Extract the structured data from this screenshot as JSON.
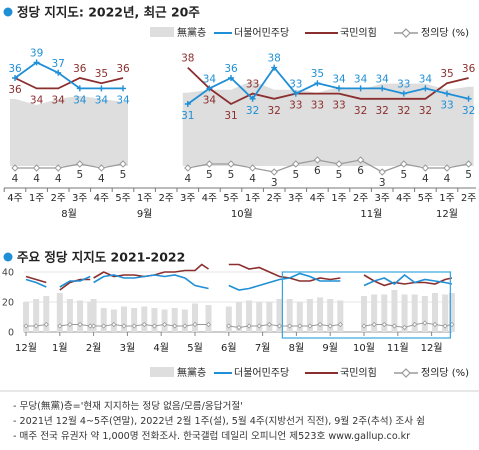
{
  "colors": {
    "minjoo": "#1f8fd6",
    "ppp": "#8b2e2e",
    "justice": "#9a9a9a",
    "nonpartisan": "#dedede",
    "bullet": "#1f8fd6",
    "highlight": "#35a6df"
  },
  "legend": {
    "nonpartisan": "無黨층",
    "minjoo": "더불어민주당",
    "ppp": "국민의힘",
    "justice": "정의당 (%)"
  },
  "legend2": {
    "nonpartisan": "無黨층",
    "minjoo": "더불어민주당",
    "ppp": "국민의힘",
    "justice": "정의당 (%)"
  },
  "notes": [
    "- 무당(無黨)층='현재 지지하는 정당 없음/모름/응답거절'",
    "- 2021년 12월 4~5주(연말), 2022년 2월 1주(설), 5월 4주(지방선거 직전), 9월 2주(추석) 조사 쉼",
    "- 매주 전국 유권자 약 1,000명 전화조사. 한국갤럽 데일리 오피니언 제523호 www.gallup.co.kr"
  ],
  "chart_data": [
    {
      "type": "line",
      "title": "정당 지지도: 2022년, 최근 20주",
      "x": [
        "4주",
        "1주",
        "2주",
        "3주",
        "4주",
        "5주",
        "1주",
        "2주",
        "3주",
        "4주",
        "5주",
        "1주",
        "2주",
        "3주",
        "4주",
        "1주",
        "2주",
        "3주",
        "4주",
        "5주",
        "1주",
        "2주"
      ],
      "month_labels": [
        {
          "label": "8월",
          "start": 1,
          "end": 4
        },
        {
          "label": "9월",
          "start": 6,
          "end": 6
        },
        {
          "label": "10월",
          "start": 9,
          "end": 12
        },
        {
          "label": "11월",
          "start": 15,
          "end": 18
        },
        {
          "label": "12월",
          "start": 20,
          "end": 20
        }
      ],
      "gaps": [
        7
      ],
      "series": [
        {
          "name": "더불어민주당",
          "key": "minjoo",
          "values": [
            36,
            39,
            37,
            34,
            34,
            34,
            null,
            null,
            31,
            34,
            36,
            32,
            38,
            33,
            35,
            34,
            34,
            34,
            33,
            34,
            33,
            32
          ]
        },
        {
          "name": "국민의힘",
          "key": "ppp",
          "values": [
            36,
            34,
            34,
            36,
            35,
            36,
            null,
            null,
            38,
            34,
            31,
            33,
            32,
            33,
            33,
            33,
            32,
            32,
            32,
            32,
            35,
            36
          ]
        },
        {
          "name": "정의당 (%)",
          "key": "justice",
          "values": [
            4,
            4,
            4,
            5,
            4,
            5,
            null,
            null,
            4,
            5,
            5,
            4,
            3,
            5,
            6,
            5,
            6,
            3,
            5,
            4,
            4,
            5
          ]
        },
        {
          "name": "無黨층",
          "key": "nonpartisan",
          "values": [
            22,
            20,
            22,
            23,
            22,
            21,
            null,
            null,
            24,
            25,
            25,
            28,
            25,
            25,
            24,
            26,
            25,
            27,
            27,
            27,
            25,
            26
          ]
        }
      ]
    },
    {
      "type": "line",
      "title": "주요 정당 지지도 2021-2022",
      "x_labels": [
        "12월",
        "1월",
        "2월",
        "3월",
        "4월",
        "5월",
        "6월",
        "7월",
        "8월",
        "9월",
        "10월",
        "11월",
        "12월"
      ],
      "yticks": [
        0,
        20,
        40
      ],
      "ylim": [
        0,
        50
      ],
      "highlight_range": [
        8,
        12.2
      ],
      "series": [
        {
          "name": "더불어민주당",
          "key": "minjoo",
          "segments": [
            [
              0.0,
              35,
              0.3,
              33,
              0.6,
              30
            ],
            [
              1.0,
              30,
              1.3,
              34,
              1.6,
              34,
              1.9,
              37
            ],
            [
              2.0,
              33,
              2.3,
              37,
              2.6,
              38,
              2.9,
              36,
              3.2,
              36,
              3.5,
              37,
              3.8,
              38,
              4.1,
              37,
              4.4,
              38,
              4.7,
              36,
              5.0,
              31,
              5.4,
              29
            ],
            [
              6.0,
              31,
              6.3,
              28,
              6.6,
              29,
              6.9,
              31,
              7.2,
              33,
              7.5,
              35,
              7.8,
              36,
              8.1,
              39,
              8.4,
              37,
              8.7,
              34,
              9.0,
              34,
              9.3,
              34
            ],
            [
              10.0,
              31,
              10.3,
              34,
              10.6,
              36,
              10.9,
              32,
              11.2,
              38,
              11.5,
              33,
              11.8,
              35,
              12.1,
              34,
              12.4,
              33,
              12.6,
              32
            ]
          ]
        },
        {
          "name": "국민의힘",
          "key": "ppp",
          "segments": [
            [
              0.0,
              37,
              0.3,
              35,
              0.6,
              33
            ],
            [
              1.0,
              28,
              1.3,
              33,
              1.6,
              35,
              1.9,
              35
            ],
            [
              2.0,
              36,
              2.3,
              40,
              2.6,
              37,
              2.9,
              38,
              3.2,
              38,
              3.5,
              37,
              3.8,
              38,
              4.1,
              40,
              4.4,
              40,
              4.7,
              41,
              5.0,
              41,
              5.2,
              45,
              5.4,
              42
            ],
            [
              6.0,
              45,
              6.3,
              45,
              6.6,
              42,
              6.9,
              43,
              7.2,
              40,
              7.5,
              37,
              7.8,
              36,
              8.1,
              34,
              8.4,
              34,
              8.7,
              36,
              9.0,
              35,
              9.3,
              36
            ],
            [
              10.0,
              38,
              10.3,
              34,
              10.6,
              31,
              10.9,
              33,
              11.2,
              32,
              11.5,
              33,
              11.8,
              33,
              12.1,
              32,
              12.4,
              35,
              12.6,
              36
            ]
          ]
        },
        {
          "name": "정의당 (%)",
          "key": "justice",
          "segments": [
            [
              0.0,
              4,
              0.3,
              4,
              0.6,
              5
            ],
            [
              1.0,
              4,
              1.3,
              5,
              1.6,
              5,
              1.9,
              4
            ],
            [
              2.0,
              4,
              2.3,
              4,
              2.6,
              5,
              2.9,
              4,
              3.2,
              4,
              3.5,
              5,
              3.8,
              4,
              4.1,
              5,
              4.4,
              4,
              4.7,
              4,
              5.0,
              5,
              5.4,
              5
            ],
            [
              6.0,
              4,
              6.3,
              3,
              6.6,
              4,
              6.9,
              4,
              7.2,
              5,
              7.5,
              4,
              7.8,
              4,
              8.1,
              4,
              8.4,
              4,
              8.7,
              5,
              9.0,
              4,
              9.3,
              5
            ],
            [
              10.0,
              4,
              10.3,
              5,
              10.6,
              5,
              10.9,
              4,
              11.2,
              3,
              11.5,
              5,
              11.8,
              6,
              12.1,
              5,
              12.4,
              4,
              12.6,
              5
            ]
          ]
        },
        {
          "name": "無黨층",
          "key": "nonpartisan",
          "segments": [
            [
              0.0,
              20,
              0.3,
              22,
              0.6,
              24
            ],
            [
              1.0,
              26,
              1.3,
              22,
              1.6,
              21,
              1.9,
              20
            ],
            [
              2.0,
              22,
              2.3,
              16,
              2.6,
              15,
              2.9,
              17,
              3.2,
              16,
              3.5,
              17,
              3.8,
              16,
              4.1,
              15,
              4.4,
              16,
              4.7,
              15,
              5.0,
              19,
              5.4,
              18
            ],
            [
              6.0,
              17,
              6.3,
              20,
              6.6,
              21,
              6.9,
              20,
              7.2,
              20,
              7.5,
              22,
              7.8,
              22,
              8.1,
              20,
              8.4,
              22,
              8.7,
              23,
              9.0,
              22,
              9.3,
              21
            ],
            [
              10.0,
              24,
              10.3,
              25,
              10.6,
              25,
              10.9,
              28,
              11.2,
              25,
              11.5,
              25,
              11.8,
              24,
              12.1,
              26,
              12.4,
              25,
              12.6,
              26
            ]
          ]
        }
      ]
    }
  ]
}
